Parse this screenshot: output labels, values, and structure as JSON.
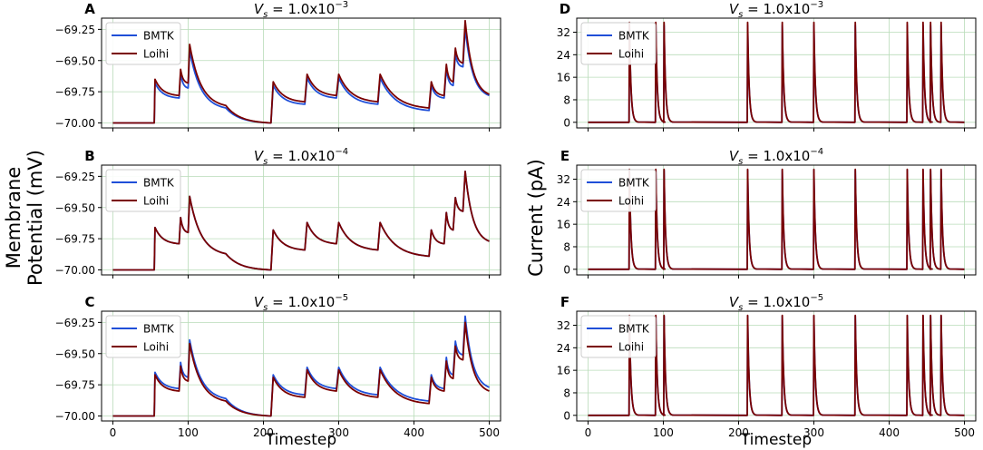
{
  "figure": {
    "left_ylabel": [
      "Membrane",
      "Potential (mV)"
    ],
    "right_ylabel": "Current (pA)",
    "left_xlabel": "Timestep",
    "right_xlabel": "Timestep",
    "colors": {
      "bmtk": "#1f4fd8",
      "loihi": "#7a0000",
      "grid": "#b9dcb9"
    }
  },
  "chart_data": [
    {
      "panel": "A",
      "type": "line",
      "title_prefix": "V",
      "title_sub": "s",
      "title_mid": " = 1.0x10",
      "title_exp": "−3",
      "xlim": [
        -15,
        515
      ],
      "ylim": [
        -70.04,
        -69.16
      ],
      "xticks": [
        "0",
        "100",
        "200",
        "300",
        "400",
        "500"
      ],
      "xtick_values": [
        0,
        100,
        200,
        300,
        400,
        500
      ],
      "yticks": [
        "−69.25",
        "−69.50",
        "−69.75",
        "−70.00"
      ],
      "ytick_values": [
        -69.25,
        -69.5,
        -69.75,
        -70.0
      ],
      "legend": [
        "BMTK",
        "Loihi"
      ],
      "legend_position": "top-left",
      "series": [
        {
          "name": "BMTK",
          "x": [
            0,
            55,
            56,
            88,
            90,
            100,
            102,
            150,
            210,
            213,
            255,
            258,
            297,
            300,
            352,
            355,
            420,
            423,
            440,
            443,
            452,
            455,
            465,
            468,
            500
          ],
          "y": [
            -70.0,
            -70.0,
            -69.68,
            -69.8,
            -69.6,
            -69.72,
            -69.42,
            -69.88,
            -70.0,
            -69.7,
            -69.85,
            -69.64,
            -69.8,
            -69.64,
            -69.85,
            -69.64,
            -69.9,
            -69.7,
            -69.8,
            -69.56,
            -69.7,
            -69.45,
            -69.55,
            -69.24,
            -69.78
          ]
        },
        {
          "name": "Loihi",
          "x": [
            0,
            55,
            56,
            88,
            90,
            100,
            102,
            150,
            210,
            213,
            255,
            258,
            297,
            300,
            352,
            355,
            420,
            423,
            440,
            443,
            452,
            455,
            465,
            468,
            500
          ],
          "y": [
            -70.0,
            -70.0,
            -69.65,
            -69.78,
            -69.57,
            -69.68,
            -69.37,
            -69.86,
            -70.0,
            -69.67,
            -69.83,
            -69.61,
            -69.78,
            -69.61,
            -69.83,
            -69.61,
            -69.88,
            -69.67,
            -69.78,
            -69.53,
            -69.67,
            -69.4,
            -69.52,
            -69.18,
            -69.77
          ]
        }
      ]
    },
    {
      "panel": "B",
      "type": "line",
      "title_prefix": "V",
      "title_sub": "s",
      "title_mid": " = 1.0x10",
      "title_exp": "−4",
      "xlim": [
        -15,
        515
      ],
      "ylim": [
        -70.04,
        -69.16
      ],
      "xticks": [
        "0",
        "100",
        "200",
        "300",
        "400",
        "500"
      ],
      "xtick_values": [
        0,
        100,
        200,
        300,
        400,
        500
      ],
      "yticks": [
        "−69.25",
        "−69.50",
        "−69.75",
        "−70.00"
      ],
      "ytick_values": [
        -69.25,
        -69.5,
        -69.75,
        -70.0
      ],
      "legend": [
        "BMTK",
        "Loihi"
      ],
      "legend_position": "top-left",
      "series": [
        {
          "name": "BMTK",
          "x": [
            0,
            55,
            56,
            88,
            90,
            100,
            102,
            150,
            210,
            213,
            255,
            258,
            297,
            300,
            352,
            355,
            420,
            423,
            440,
            443,
            452,
            455,
            465,
            468,
            500
          ],
          "y": [
            -70.0,
            -70.0,
            -69.66,
            -69.79,
            -69.58,
            -69.7,
            -69.41,
            -69.87,
            -70.0,
            -69.68,
            -69.84,
            -69.62,
            -69.79,
            -69.62,
            -69.84,
            -69.62,
            -69.89,
            -69.68,
            -69.79,
            -69.54,
            -69.68,
            -69.42,
            -69.53,
            -69.21,
            -69.77
          ]
        },
        {
          "name": "Loihi",
          "x": [
            0,
            55,
            56,
            88,
            90,
            100,
            102,
            150,
            210,
            213,
            255,
            258,
            297,
            300,
            352,
            355,
            420,
            423,
            440,
            443,
            452,
            455,
            465,
            468,
            500
          ],
          "y": [
            -70.0,
            -70.0,
            -69.66,
            -69.79,
            -69.58,
            -69.7,
            -69.41,
            -69.87,
            -70.0,
            -69.68,
            -69.84,
            -69.62,
            -69.79,
            -69.62,
            -69.84,
            -69.62,
            -69.89,
            -69.68,
            -69.79,
            -69.54,
            -69.68,
            -69.42,
            -69.53,
            -69.21,
            -69.77
          ]
        }
      ]
    },
    {
      "panel": "C",
      "type": "line",
      "title_prefix": "V",
      "title_sub": "s",
      "title_mid": " = 1.0x10",
      "title_exp": "−5",
      "xlim": [
        -15,
        515
      ],
      "ylim": [
        -70.04,
        -69.16
      ],
      "xticks": [
        "0",
        "100",
        "200",
        "300",
        "400",
        "500"
      ],
      "xtick_values": [
        0,
        100,
        200,
        300,
        400,
        500
      ],
      "yticks": [
        "−69.25",
        "−69.50",
        "−69.75",
        "−70.00"
      ],
      "ytick_values": [
        -69.25,
        -69.5,
        -69.75,
        -70.0
      ],
      "legend": [
        "BMTK",
        "Loihi"
      ],
      "legend_position": "top-left",
      "series": [
        {
          "name": "BMTK",
          "x": [
            0,
            55,
            56,
            88,
            90,
            100,
            102,
            150,
            210,
            213,
            255,
            258,
            297,
            300,
            352,
            355,
            420,
            423,
            440,
            443,
            452,
            455,
            465,
            468,
            500
          ],
          "y": [
            -70.0,
            -70.0,
            -69.65,
            -69.78,
            -69.57,
            -69.69,
            -69.39,
            -69.86,
            -70.0,
            -69.67,
            -69.83,
            -69.61,
            -69.78,
            -69.61,
            -69.83,
            -69.61,
            -69.88,
            -69.67,
            -69.78,
            -69.53,
            -69.67,
            -69.4,
            -69.51,
            -69.2,
            -69.77
          ]
        },
        {
          "name": "Loihi",
          "x": [
            0,
            55,
            56,
            88,
            90,
            100,
            102,
            150,
            210,
            213,
            255,
            258,
            297,
            300,
            352,
            355,
            420,
            423,
            440,
            443,
            452,
            455,
            465,
            468,
            500
          ],
          "y": [
            -70.0,
            -70.0,
            -69.67,
            -69.8,
            -69.6,
            -69.72,
            -69.42,
            -69.88,
            -70.0,
            -69.69,
            -69.85,
            -69.63,
            -69.8,
            -69.63,
            -69.85,
            -69.63,
            -69.9,
            -69.69,
            -69.8,
            -69.56,
            -69.7,
            -69.44,
            -69.55,
            -69.25,
            -69.8
          ]
        }
      ]
    },
    {
      "panel": "D",
      "type": "line",
      "title_prefix": "V",
      "title_sub": "s",
      "title_mid": " = 1.0x10",
      "title_exp": "−3",
      "xlim": [
        -15,
        515
      ],
      "ylim": [
        -2,
        37
      ],
      "xticks": [
        "0",
        "100",
        "200",
        "300",
        "400",
        "500"
      ],
      "xtick_values": [
        0,
        100,
        200,
        300,
        400,
        500
      ],
      "yticks": [
        "32",
        "24",
        "16",
        "8",
        "0"
      ],
      "ytick_values": [
        32,
        24,
        16,
        8,
        0
      ],
      "legend": [
        "BMTK",
        "Loihi"
      ],
      "legend_position": "top-left",
      "spike_times": [
        55,
        90,
        101,
        212,
        258,
        300,
        355,
        424,
        445,
        455,
        469
      ],
      "spike_peak": 35,
      "spike_decay_steps": 6,
      "series": [
        {
          "name": "BMTK",
          "peak": 34.5
        },
        {
          "name": "Loihi",
          "peak": 35.5
        }
      ]
    },
    {
      "panel": "E",
      "type": "line",
      "title_prefix": "V",
      "title_sub": "s",
      "title_mid": " = 1.0x10",
      "title_exp": "−4",
      "xlim": [
        -15,
        515
      ],
      "ylim": [
        -2,
        37
      ],
      "xticks": [
        "0",
        "100",
        "200",
        "300",
        "400",
        "500"
      ],
      "xtick_values": [
        0,
        100,
        200,
        300,
        400,
        500
      ],
      "yticks": [
        "32",
        "24",
        "16",
        "8",
        "0"
      ],
      "ytick_values": [
        32,
        24,
        16,
        8,
        0
      ],
      "legend": [
        "BMTK",
        "Loihi"
      ],
      "legend_position": "top-left",
      "spike_times": [
        55,
        90,
        101,
        212,
        258,
        300,
        355,
        424,
        445,
        455,
        469
      ],
      "spike_peak": 35,
      "spike_decay_steps": 6,
      "series": [
        {
          "name": "BMTK",
          "peak": 35.2
        },
        {
          "name": "Loihi",
          "peak": 35.5
        }
      ]
    },
    {
      "panel": "F",
      "type": "line",
      "title_prefix": "V",
      "title_sub": "s",
      "title_mid": " = 1.0x10",
      "title_exp": "−5",
      "xlim": [
        -15,
        515
      ],
      "ylim": [
        -2,
        37
      ],
      "xticks": [
        "0",
        "100",
        "200",
        "300",
        "400",
        "500"
      ],
      "xtick_values": [
        0,
        100,
        200,
        300,
        400,
        500
      ],
      "yticks": [
        "32",
        "24",
        "16",
        "8",
        "0"
      ],
      "ytick_values": [
        32,
        24,
        16,
        8,
        0
      ],
      "legend": [
        "BMTK",
        "Loihi"
      ],
      "legend_position": "top-left",
      "spike_times": [
        55,
        90,
        101,
        212,
        258,
        300,
        355,
        424,
        445,
        455,
        469
      ],
      "spike_peak": 35,
      "spike_decay_steps": 6,
      "series": [
        {
          "name": "BMTK",
          "peak": 35.3
        },
        {
          "name": "Loihi",
          "peak": 35.5
        }
      ]
    }
  ]
}
